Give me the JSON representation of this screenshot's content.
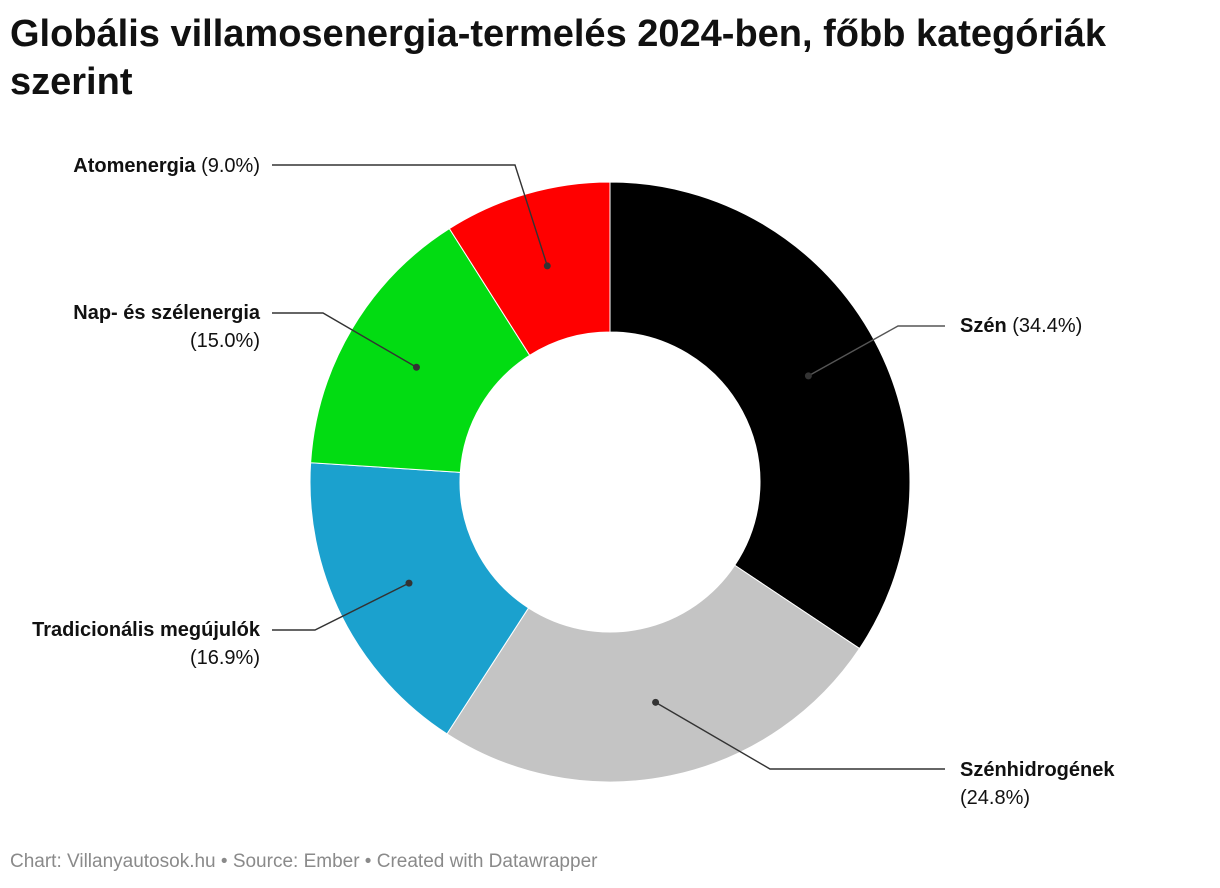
{
  "title": "Globális villamosenergia-termelés 2024-ben, főbb kategóriák szerint",
  "footer": "Chart: Villanyautosok.hu • Source: Ember • Created with Datawrapper",
  "chart_data": {
    "type": "pie",
    "variant": "donut",
    "title": "Globális villamosenergia-termelés 2024-ben, főbb kategóriák szerint",
    "unit": "%",
    "slices": [
      {
        "name": "Szén",
        "value": 34.4,
        "value_label": "(34.4%)",
        "color": "#000000"
      },
      {
        "name": "Szénhidrogének",
        "value": 24.8,
        "value_label": "(24.8%)",
        "color": "#c4c4c4"
      },
      {
        "name": "Tradicionális megújulók",
        "value": 16.9,
        "value_label": "(16.9%)",
        "color": "#1ba1ce"
      },
      {
        "name": "Nap- és szélenergia",
        "value": 15.0,
        "value_label": "(15.0%)",
        "color": "#02dc12"
      },
      {
        "name": "Atomenergia",
        "value": 9.0,
        "value_label": "(9.0%)",
        "color": "#ff0000"
      }
    ]
  }
}
